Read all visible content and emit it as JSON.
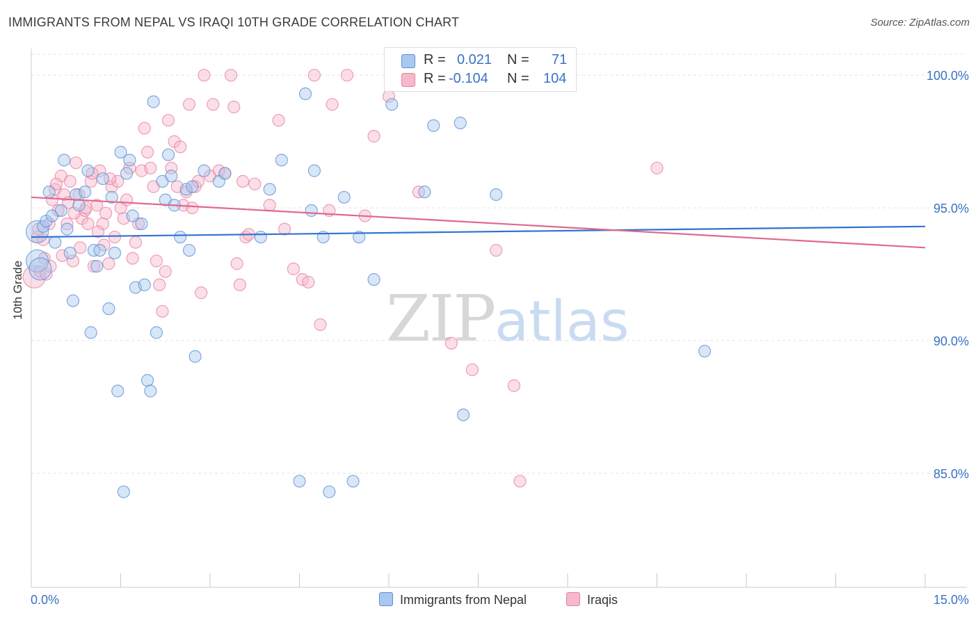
{
  "title": "IMMIGRANTS FROM NEPAL VS IRAQI 10TH GRADE CORRELATION CHART",
  "source": "Source: ZipAtlas.com",
  "watermark": {
    "zip": "ZIP",
    "atlas": "atlas"
  },
  "legend": {
    "rows": [
      {
        "r_label": "R =",
        "r_value": "0.021",
        "n_label": "N =",
        "n_value": "71"
      },
      {
        "r_label": "R =",
        "r_value": "-0.104",
        "n_label": "N =",
        "n_value": "104"
      }
    ]
  },
  "bottom_legend": [
    {
      "label": "Immigrants from Nepal"
    },
    {
      "label": "Iraqis"
    }
  ],
  "chart_data": {
    "type": "scatter",
    "title": "IMMIGRANTS FROM NEPAL VS IRAQI 10TH GRADE CORRELATION CHART",
    "xlabel": "",
    "ylabel": "10th Grade",
    "xlim": [
      0,
      15
    ],
    "ylim": [
      80.7,
      101.0
    ],
    "x_tick_labels": [
      "0.0%",
      "15.0%"
    ],
    "y_ticks": [
      85,
      90,
      95,
      100
    ],
    "y_tick_labels": [
      "85.0%",
      "90.0%",
      "95.0%",
      "100.0%"
    ],
    "grid": true,
    "legend_position": "top-center",
    "colors": {
      "nepal_fill": "#a9c8ee",
      "nepal_stroke": "#5b8fd6",
      "nepal_line": "#2f72d0",
      "iraqi_fill": "#f6b8cb",
      "iraqi_stroke": "#e8809f",
      "iraqi_line": "#e0688f",
      "tick_label": "#3a72c4"
    },
    "series": [
      {
        "name": "Immigrants from Nepal",
        "r": 0.021,
        "n": 71,
        "trend": {
          "x": [
            0,
            15
          ],
          "y": [
            93.9,
            94.3
          ]
        },
        "points": [
          [
            0.1,
            93.0
          ],
          [
            0.15,
            92.7
          ],
          [
            0.1,
            94.1
          ],
          [
            0.2,
            94.3
          ],
          [
            0.25,
            94.5
          ],
          [
            0.3,
            95.6
          ],
          [
            0.35,
            94.7
          ],
          [
            0.4,
            93.7
          ],
          [
            0.5,
            94.9
          ],
          [
            0.6,
            94.2
          ],
          [
            0.65,
            93.3
          ],
          [
            0.7,
            91.5
          ],
          [
            0.75,
            95.5
          ],
          [
            0.8,
            95.1
          ],
          [
            0.9,
            95.6
          ],
          [
            0.95,
            96.4
          ],
          [
            1.0,
            90.3
          ],
          [
            1.05,
            93.4
          ],
          [
            1.1,
            92.8
          ],
          [
            1.15,
            93.4
          ],
          [
            1.2,
            96.1
          ],
          [
            1.3,
            91.2
          ],
          [
            1.35,
            95.4
          ],
          [
            1.4,
            93.3
          ],
          [
            1.45,
            88.1
          ],
          [
            1.5,
            97.1
          ],
          [
            1.55,
            84.3
          ],
          [
            1.6,
            96.3
          ],
          [
            1.65,
            96.8
          ],
          [
            1.7,
            94.7
          ],
          [
            1.75,
            92.0
          ],
          [
            1.85,
            94.4
          ],
          [
            1.9,
            92.1
          ],
          [
            1.95,
            88.5
          ],
          [
            2.0,
            88.1
          ],
          [
            2.05,
            99.0
          ],
          [
            2.1,
            90.3
          ],
          [
            2.2,
            96.0
          ],
          [
            2.25,
            95.3
          ],
          [
            2.3,
            97.0
          ],
          [
            2.35,
            96.2
          ],
          [
            2.4,
            95.1
          ],
          [
            2.5,
            93.9
          ],
          [
            2.6,
            95.7
          ],
          [
            2.65,
            93.4
          ],
          [
            2.7,
            95.8
          ],
          [
            2.75,
            89.4
          ],
          [
            2.9,
            96.4
          ],
          [
            3.15,
            96.0
          ],
          [
            3.25,
            96.3
          ],
          [
            3.85,
            93.9
          ],
          [
            4.0,
            95.7
          ],
          [
            4.2,
            96.8
          ],
          [
            4.5,
            84.7
          ],
          [
            4.6,
            99.3
          ],
          [
            4.7,
            94.9
          ],
          [
            4.75,
            96.4
          ],
          [
            4.9,
            93.9
          ],
          [
            5.0,
            84.3
          ],
          [
            5.25,
            95.4
          ],
          [
            5.4,
            84.7
          ],
          [
            5.5,
            93.9
          ],
          [
            5.75,
            92.3
          ],
          [
            6.05,
            98.9
          ],
          [
            6.6,
            95.6
          ],
          [
            6.75,
            98.1
          ],
          [
            7.2,
            98.2
          ],
          [
            7.25,
            87.2
          ],
          [
            7.8,
            95.5
          ],
          [
            11.3,
            89.6
          ],
          [
            0.55,
            96.8
          ]
        ]
      },
      {
        "name": "Iraqis",
        "r": -0.104,
        "n": 104,
        "trend": {
          "x": [
            0,
            15
          ],
          "y": [
            95.4,
            93.5
          ]
        },
        "points": [
          [
            0.05,
            92.4
          ],
          [
            0.1,
            93.9
          ],
          [
            0.15,
            92.6
          ],
          [
            0.2,
            93.8
          ],
          [
            0.25,
            92.5
          ],
          [
            0.3,
            94.4
          ],
          [
            0.35,
            95.3
          ],
          [
            0.4,
            95.7
          ],
          [
            0.45,
            94.9
          ],
          [
            0.5,
            96.2
          ],
          [
            0.55,
            95.5
          ],
          [
            0.6,
            94.4
          ],
          [
            0.65,
            96.0
          ],
          [
            0.7,
            93.0
          ],
          [
            0.75,
            96.7
          ],
          [
            0.8,
            95.5
          ],
          [
            0.85,
            94.6
          ],
          [
            0.9,
            94.9
          ],
          [
            0.95,
            94.4
          ],
          [
            1.0,
            96.0
          ],
          [
            1.05,
            92.8
          ],
          [
            1.1,
            95.1
          ],
          [
            1.15,
            96.4
          ],
          [
            1.2,
            94.4
          ],
          [
            1.25,
            94.8
          ],
          [
            1.3,
            92.9
          ],
          [
            1.35,
            95.8
          ],
          [
            1.4,
            93.9
          ],
          [
            1.45,
            96.0
          ],
          [
            1.5,
            95.0
          ],
          [
            1.55,
            94.6
          ],
          [
            1.6,
            95.3
          ],
          [
            1.65,
            96.5
          ],
          [
            1.7,
            93.1
          ],
          [
            1.75,
            93.7
          ],
          [
            1.8,
            94.4
          ],
          [
            1.85,
            96.4
          ],
          [
            1.9,
            98.0
          ],
          [
            1.95,
            97.1
          ],
          [
            2.0,
            96.5
          ],
          [
            2.05,
            95.8
          ],
          [
            2.1,
            93.0
          ],
          [
            2.15,
            92.1
          ],
          [
            2.2,
            91.1
          ],
          [
            2.25,
            92.6
          ],
          [
            2.3,
            98.3
          ],
          [
            2.35,
            96.5
          ],
          [
            2.4,
            97.5
          ],
          [
            2.45,
            95.8
          ],
          [
            2.5,
            97.3
          ],
          [
            2.55,
            95.1
          ],
          [
            2.6,
            95.6
          ],
          [
            2.65,
            98.9
          ],
          [
            2.7,
            95.0
          ],
          [
            2.75,
            95.8
          ],
          [
            2.8,
            96.0
          ],
          [
            2.85,
            91.8
          ],
          [
            2.9,
            100.0
          ],
          [
            3.0,
            96.2
          ],
          [
            3.05,
            98.9
          ],
          [
            3.15,
            96.4
          ],
          [
            3.25,
            96.3
          ],
          [
            3.35,
            100.0
          ],
          [
            3.4,
            98.8
          ],
          [
            3.45,
            92.9
          ],
          [
            3.5,
            92.1
          ],
          [
            3.55,
            96.0
          ],
          [
            3.6,
            93.9
          ],
          [
            3.65,
            94.0
          ],
          [
            3.75,
            95.9
          ],
          [
            4.0,
            95.1
          ],
          [
            4.15,
            98.3
          ],
          [
            4.25,
            94.2
          ],
          [
            4.4,
            92.7
          ],
          [
            4.55,
            92.3
          ],
          [
            4.65,
            92.2
          ],
          [
            4.75,
            100.0
          ],
          [
            4.85,
            90.6
          ],
          [
            5.0,
            94.9
          ],
          [
            5.05,
            98.9
          ],
          [
            5.3,
            100.0
          ],
          [
            5.6,
            94.7
          ],
          [
            5.75,
            97.7
          ],
          [
            6.0,
            99.2
          ],
          [
            6.5,
            95.6
          ],
          [
            7.05,
            89.9
          ],
          [
            7.4,
            88.9
          ],
          [
            7.8,
            93.4
          ],
          [
            8.1,
            88.3
          ],
          [
            8.2,
            84.7
          ],
          [
            10.5,
            96.5
          ],
          [
            0.12,
            94.2
          ],
          [
            0.22,
            93.1
          ],
          [
            0.32,
            92.8
          ],
          [
            0.42,
            95.9
          ],
          [
            0.52,
            93.2
          ],
          [
            0.62,
            95.2
          ],
          [
            0.72,
            94.8
          ],
          [
            0.82,
            93.5
          ],
          [
            0.92,
            95.0
          ],
          [
            1.02,
            96.3
          ],
          [
            1.12,
            94.1
          ],
          [
            1.22,
            93.6
          ],
          [
            1.32,
            96.1
          ]
        ]
      }
    ]
  }
}
